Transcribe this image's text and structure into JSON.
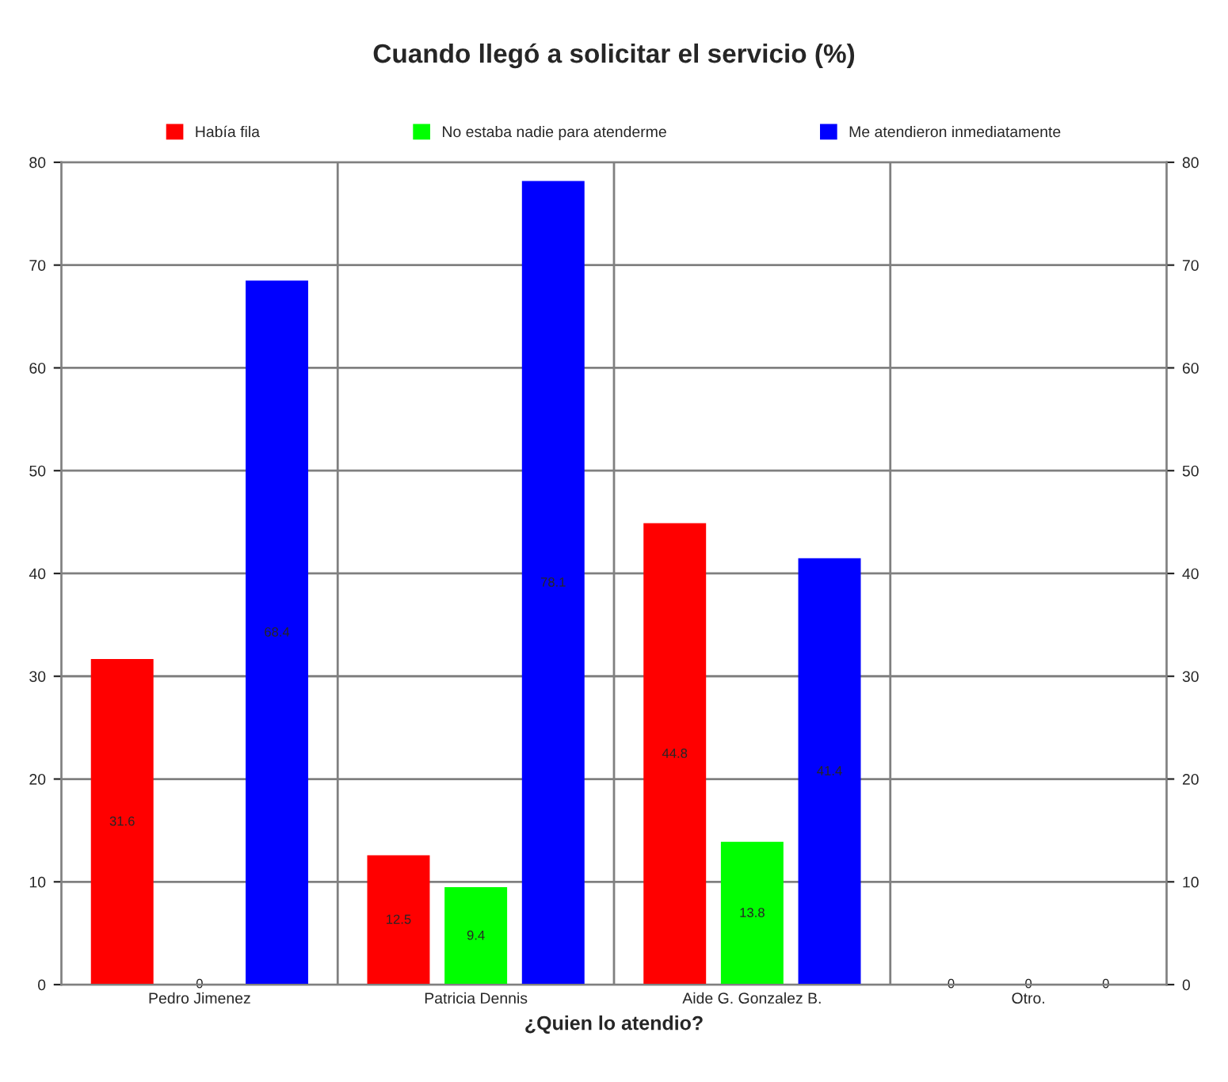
{
  "chart_data": {
    "type": "bar",
    "title": "Cuando llegó a solicitar el servicio (%)",
    "xlabel": "¿Quien lo atendio?",
    "categories": [
      "Pedro Jimenez",
      "Patricia Dennis",
      "Aide G. Gonzalez B.",
      "Otro."
    ],
    "series": [
      {
        "name": "Había fila",
        "color": "#ff0000",
        "values": [
          31.6,
          12.5,
          44.8,
          0
        ]
      },
      {
        "name": "No estaba nadie para atenderme",
        "color": "#00ff00",
        "values": [
          0,
          9.4,
          13.8,
          0
        ]
      },
      {
        "name": "Me atendieron inmediatamente",
        "color": "#0000ff",
        "values": [
          68.4,
          78.1,
          41.4,
          0
        ]
      }
    ],
    "ylim": [
      0,
      80
    ],
    "yticks": [
      0,
      10,
      20,
      30,
      40,
      50,
      60,
      70,
      80
    ],
    "y2lim": [
      0,
      80
    ],
    "y2ticks": [
      0,
      10,
      20,
      30,
      40,
      50,
      60,
      70,
      80
    ],
    "grid": true,
    "legend": "top",
    "data_labels": true
  }
}
